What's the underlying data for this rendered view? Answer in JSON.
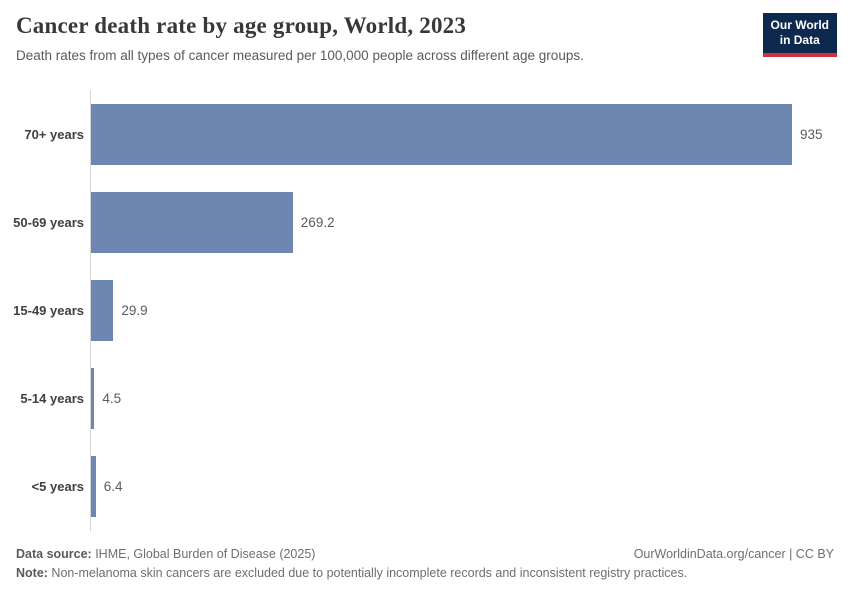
{
  "header": {
    "title": "Cancer death rate by age group, World, 2023",
    "subtitle": "Death rates from all types of cancer measured per 100,000 people across different age groups.",
    "logo_line1": "Our World",
    "logo_line2": "in Data"
  },
  "chart_data": {
    "type": "bar",
    "orientation": "horizontal",
    "title": "Cancer death rate by age group, World, 2023",
    "xlabel": "",
    "ylabel": "",
    "categories": [
      "70+ years",
      "50-69 years",
      "15-49 years",
      "5-14 years",
      "<5 years"
    ],
    "values": [
      935,
      269.2,
      29.9,
      4.5,
      6.4
    ],
    "value_labels": [
      "935",
      "269.2",
      "29.9",
      "4.5",
      "6.4"
    ],
    "unit": "deaths per 100,000 people",
    "xlim": [
      0,
      993
    ],
    "grid": false,
    "legend": "none",
    "bar_color": "#6e87b0"
  },
  "footer": {
    "datasource_label": "Data source:",
    "datasource_text": " IHME, Global Burden of Disease (2025)",
    "link": "OurWorldinData.org/cancer | CC BY",
    "note_label": "Note:",
    "note_text": " Non-melanoma skin cancers are excluded due to potentially incomplete records and inconsistent registry practices."
  },
  "colors": {
    "bar": "#6e87b0",
    "logo_navy": "#0d2a4e",
    "logo_red": "#d0313b",
    "axis": "#d4d4d4",
    "title_text": "#383838",
    "body_text": "#5b5b5b"
  }
}
